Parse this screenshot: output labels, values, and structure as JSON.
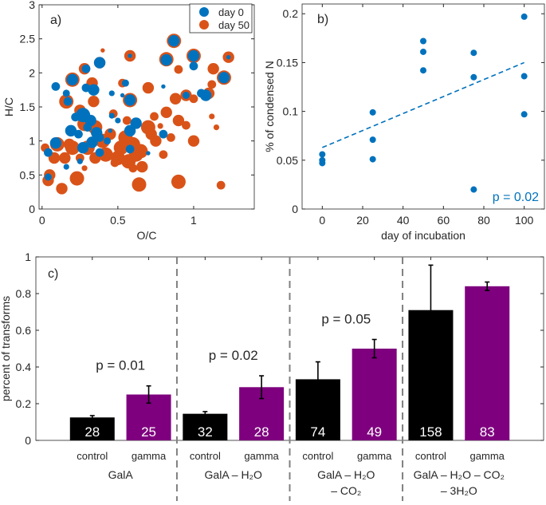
{
  "colors": {
    "day0": "#0072BD",
    "day50": "#D95319",
    "control": "#000000",
    "gamma": "#7E007E",
    "trend": "#0072BD",
    "divider": "#808080"
  },
  "chart_data": [
    {
      "type": "scatter",
      "panel_label": "a)",
      "xlabel": "O/C",
      "ylabel": "H/C",
      "xlim": [
        -0.02,
        1.4
      ],
      "ylim": [
        0,
        3
      ],
      "xticks": [
        "0",
        "0.5",
        "1"
      ],
      "xtick_values": [
        0,
        0.5,
        1
      ],
      "yticks": [
        "0",
        "0.5",
        "1",
        "1.5",
        "2",
        "2.5",
        "3"
      ],
      "ytick_values": [
        0,
        0.5,
        1,
        1.5,
        2,
        2.5,
        3
      ],
      "legend_position": "top-right",
      "series": [
        {
          "name": "day 50",
          "color_key": "day50",
          "points": [
            [
              0.87,
              2.47,
              5
            ],
            [
              0.82,
              2.2,
              5
            ],
            [
              1.0,
              2.25,
              5
            ],
            [
              1.23,
              2.23,
              4
            ],
            [
              0.58,
              2.25,
              4
            ],
            [
              1.2,
              1.93,
              5
            ],
            [
              1.13,
              2.06,
              4
            ],
            [
              0.9,
              2.05,
              3
            ],
            [
              0.2,
              1.9,
              5
            ],
            [
              0.28,
              2.06,
              4
            ],
            [
              0.38,
              2.15,
              4
            ],
            [
              0.33,
              1.85,
              4
            ],
            [
              0.16,
              1.58,
              5
            ],
            [
              0.34,
              1.58,
              4
            ],
            [
              0.58,
              1.6,
              5
            ],
            [
              0.53,
              1.85,
              3
            ],
            [
              0.7,
              1.78,
              4
            ],
            [
              0.88,
              1.62,
              4
            ],
            [
              0.95,
              1.67,
              4
            ],
            [
              1.1,
              1.7,
              4
            ],
            [
              1.0,
              1.62,
              3
            ],
            [
              1.12,
              1.83,
              3
            ],
            [
              0.82,
              1.42,
              4
            ],
            [
              0.74,
              1.36,
              3
            ],
            [
              0.9,
              1.3,
              4
            ],
            [
              0.95,
              1.23,
              3
            ],
            [
              1.0,
              1.0,
              4
            ],
            [
              1.15,
              1.2,
              2
            ],
            [
              0.25,
              1.45,
              4
            ],
            [
              0.28,
              1.25,
              5
            ],
            [
              0.35,
              1.2,
              5
            ],
            [
              0.2,
              0.9,
              5
            ],
            [
              0.1,
              0.95,
              5
            ],
            [
              0.15,
              0.75,
              4
            ],
            [
              0.08,
              0.75,
              4
            ],
            [
              0.05,
              0.5,
              4
            ],
            [
              0.04,
              0.42,
              4
            ],
            [
              0.13,
              0.3,
              4
            ],
            [
              0.23,
              0.45,
              5
            ],
            [
              0.28,
              0.6,
              2
            ],
            [
              0.35,
              0.75,
              4
            ],
            [
              0.42,
              0.8,
              5
            ],
            [
              0.45,
              1.1,
              4
            ],
            [
              0.52,
              0.9,
              5
            ],
            [
              0.55,
              1.05,
              5
            ],
            [
              0.6,
              0.95,
              5
            ],
            [
              0.62,
              0.8,
              5
            ],
            [
              0.65,
              0.85,
              5
            ],
            [
              0.57,
              0.7,
              5
            ],
            [
              0.5,
              0.75,
              5
            ],
            [
              0.66,
              0.62,
              4
            ],
            [
              0.7,
              1.2,
              5
            ],
            [
              0.75,
              1.0,
              4
            ],
            [
              0.8,
              0.8,
              3
            ],
            [
              0.64,
              0.36,
              5
            ],
            [
              0.9,
              0.4,
              5
            ],
            [
              1.18,
              0.35,
              3
            ],
            [
              0.48,
              0.68,
              3
            ],
            [
              0.6,
              0.6,
              3
            ],
            [
              0.3,
              0.9,
              5
            ],
            [
              0.4,
              1.0,
              5
            ],
            [
              0.72,
              1.1,
              4
            ],
            [
              0.85,
              1.05,
              3
            ],
            [
              0.25,
              0.75,
              3
            ],
            [
              0.18,
              0.95,
              4
            ],
            [
              0.56,
              1.3,
              3
            ],
            [
              0.47,
              1.4,
              3
            ],
            [
              0.02,
              0.9,
              3
            ],
            [
              1.12,
              1.36,
              2
            ],
            [
              0.78,
              1.22,
              2
            ],
            [
              0.4,
              2.33,
              1.5
            ]
          ]
        },
        {
          "name": "day 0",
          "color_key": "day0",
          "points": [
            [
              0.87,
              2.47,
              4
            ],
            [
              0.82,
              2.19,
              4
            ],
            [
              1.0,
              2.25,
              4
            ],
            [
              1.0,
              2.1,
              3
            ],
            [
              1.23,
              2.23,
              1.5
            ],
            [
              0.58,
              2.25,
              1.5
            ],
            [
              1.2,
              1.93,
              4
            ],
            [
              0.2,
              1.9,
              4
            ],
            [
              0.29,
              2.06,
              3
            ],
            [
              0.38,
              2.15,
              4
            ],
            [
              0.09,
              1.8,
              3
            ],
            [
              0.16,
              1.7,
              2.5
            ],
            [
              0.17,
              1.58,
              3
            ],
            [
              0.29,
              1.78,
              3
            ],
            [
              0.34,
              1.75,
              4
            ],
            [
              0.55,
              1.85,
              2.5
            ],
            [
              0.58,
              1.6,
              4
            ],
            [
              0.46,
              1.7,
              2
            ],
            [
              0.53,
              1.67,
              1.5
            ],
            [
              0.8,
              1.8,
              1.5
            ],
            [
              0.95,
              1.67,
              2.5
            ],
            [
              1.08,
              1.67,
              4
            ],
            [
              1.05,
              1.7,
              3
            ],
            [
              0.27,
              1.38,
              5
            ],
            [
              0.32,
              1.3,
              4
            ],
            [
              0.22,
              1.35,
              3
            ],
            [
              0.19,
              1.15,
              4
            ],
            [
              0.3,
              1.2,
              3
            ],
            [
              0.24,
              1.1,
              3
            ],
            [
              0.36,
              1.12,
              4
            ],
            [
              0.38,
              1.05,
              3
            ],
            [
              0.33,
              0.98,
              4
            ],
            [
              0.27,
              0.9,
              4
            ],
            [
              0.43,
              1.0,
              2.5
            ],
            [
              0.46,
              1.37,
              2
            ],
            [
              0.5,
              1.3,
              2
            ],
            [
              0.62,
              1.26,
              4
            ],
            [
              0.58,
              1.15,
              4
            ],
            [
              0.58,
              0.88,
              3
            ],
            [
              0.8,
              1.1,
              3
            ],
            [
              0.38,
              0.83,
              3
            ],
            [
              0.09,
              0.97,
              4
            ],
            [
              0.04,
              0.83,
              3
            ],
            [
              0.04,
              0.47,
              2.5
            ],
            [
              0.16,
              0.62,
              2
            ],
            [
              0.25,
              0.7,
              2
            ],
            [
              0.7,
              0.82,
              1.5
            ],
            [
              0.45,
              1.15,
              1.5
            ]
          ]
        }
      ]
    },
    {
      "type": "scatter",
      "panel_label": "b)",
      "xlabel": "day of incubation",
      "ylabel": "% of condensed N",
      "xlim": [
        -10,
        110
      ],
      "ylim": [
        0,
        0.21
      ],
      "xticks": [
        "0",
        "20",
        "40",
        "60",
        "80",
        "100"
      ],
      "xtick_values": [
        0,
        20,
        40,
        60,
        80,
        100
      ],
      "yticks": [
        "0",
        "0.05",
        "0.1",
        "0.15",
        "0.2"
      ],
      "ytick_values": [
        0,
        0.05,
        0.1,
        0.15,
        0.2
      ],
      "points": [
        [
          0,
          0.056
        ],
        [
          0,
          0.05
        ],
        [
          0,
          0.047
        ],
        [
          25,
          0.099
        ],
        [
          25,
          0.071
        ],
        [
          25,
          0.051
        ],
        [
          50,
          0.172
        ],
        [
          50,
          0.161
        ],
        [
          50,
          0.142
        ],
        [
          75,
          0.16
        ],
        [
          75,
          0.135
        ],
        [
          75,
          0.02
        ],
        [
          100,
          0.197
        ],
        [
          100,
          0.136
        ],
        [
          100,
          0.097
        ]
      ],
      "trend_line": {
        "x": [
          0,
          100
        ],
        "y": [
          0.063,
          0.15
        ],
        "style": "dashed"
      },
      "annotation": "p = 0.02"
    },
    {
      "type": "bar",
      "panel_label": "c)",
      "ylabel": "percent of transforms",
      "ylim": [
        0,
        1
      ],
      "yticks": [
        "0",
        "0.2",
        "0.4",
        "0.6",
        "0.8",
        "1"
      ],
      "ytick_values": [
        0,
        0.2,
        0.4,
        0.6,
        0.8,
        1
      ],
      "groups": [
        {
          "label_lines": [
            "GalA"
          ],
          "p_label": "p = 0.01",
          "bars": [
            {
              "category": "control",
              "value": 0.125,
              "error": 0.01,
              "count": "28"
            },
            {
              "category": "gamma",
              "value": 0.25,
              "error": 0.047,
              "count": "25"
            }
          ]
        },
        {
          "label_lines": [
            "GalA – H₂O"
          ],
          "p_label": "p = 0.02",
          "bars": [
            {
              "category": "control",
              "value": 0.145,
              "error": 0.012,
              "count": "32"
            },
            {
              "category": "gamma",
              "value": 0.29,
              "error": 0.062,
              "count": "28"
            }
          ]
        },
        {
          "label_lines": [
            "GalA – H₂O",
            "– CO₂"
          ],
          "p_label": "p = 0.05",
          "bars": [
            {
              "category": "control",
              "value": 0.333,
              "error": 0.095,
              "count": "74"
            },
            {
              "category": "gamma",
              "value": 0.5,
              "error": 0.05,
              "count": "49"
            }
          ]
        },
        {
          "label_lines": [
            "GalA – H₂O – CO₂",
            "– 3H₂O"
          ],
          "p_label": "",
          "bars": [
            {
              "category": "control",
              "value": 0.71,
              "error": 0.245,
              "count": "158"
            },
            {
              "category": "gamma",
              "value": 0.84,
              "error": 0.023,
              "count": "83"
            }
          ]
        }
      ]
    }
  ]
}
